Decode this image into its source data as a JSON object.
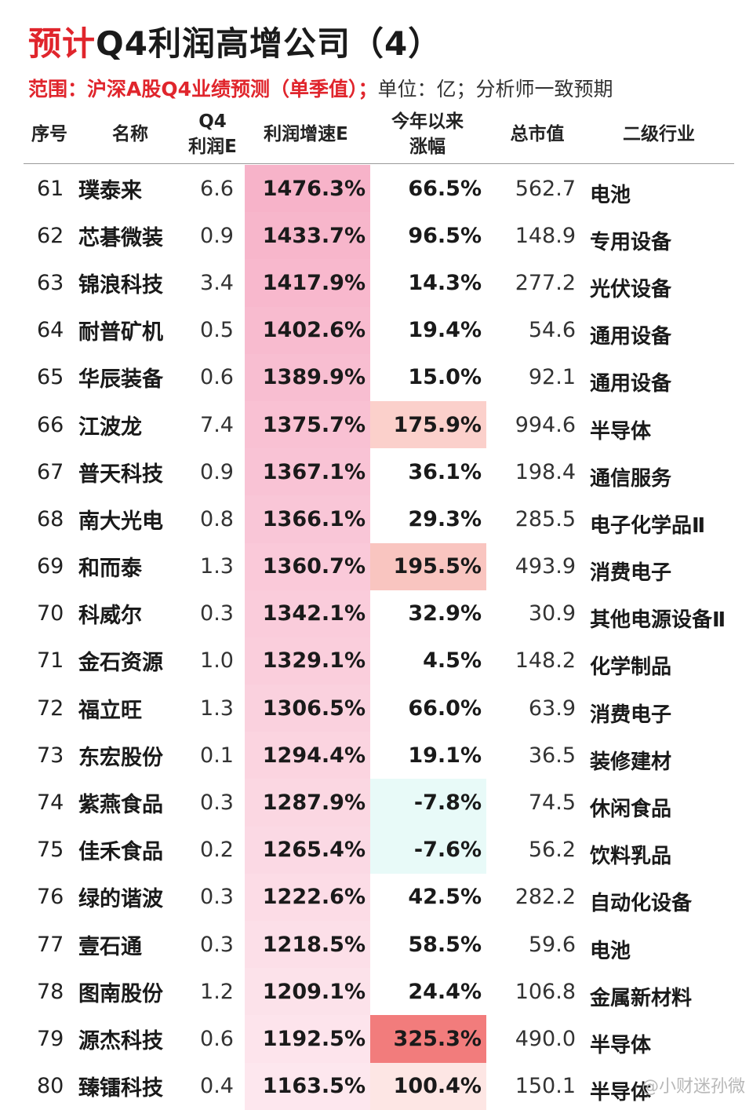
{
  "title": {
    "red": "预计",
    "black": "Q4利润高增公司（4）"
  },
  "subtitle": {
    "red": "范围：沪深A股Q4业绩预测（单季值）；",
    "gray": "单位：亿；分析师一致预期"
  },
  "headers": {
    "idx": "序号",
    "name": "名称",
    "q4_line1": "Q4",
    "q4_line2": "利润E",
    "growth": "利润增速E",
    "ytd_line1": "今年以来",
    "ytd_line2": "涨幅",
    "cap": "总市值",
    "industry": "二级行业"
  },
  "colors": {
    "growth_top": "#f7b3c9",
    "growth_bottom": "#fde7ee",
    "ytd_high": "#f27c7c",
    "ytd_mid": "#f9c5c0",
    "ytd_low": "#fde6e4",
    "ytd_negative": "#e8faf8",
    "title_red": "#e0252c"
  },
  "rows": [
    {
      "idx": "61",
      "name": "璞泰来",
      "q4": "6.6",
      "growth": "1476.3%",
      "ytd": "66.5%",
      "cap": "562.7",
      "industry": "电池"
    },
    {
      "idx": "62",
      "name": "芯碁微装",
      "q4": "0.9",
      "growth": "1433.7%",
      "ytd": "96.5%",
      "cap": "148.9",
      "industry": "专用设备"
    },
    {
      "idx": "63",
      "name": "锦浪科技",
      "q4": "3.4",
      "growth": "1417.9%",
      "ytd": "14.3%",
      "cap": "277.2",
      "industry": "光伏设备"
    },
    {
      "idx": "64",
      "name": "耐普矿机",
      "q4": "0.5",
      "growth": "1402.6%",
      "ytd": "19.4%",
      "cap": "54.6",
      "industry": "通用设备"
    },
    {
      "idx": "65",
      "name": "华辰装备",
      "q4": "0.6",
      "growth": "1389.9%",
      "ytd": "15.0%",
      "cap": "92.1",
      "industry": "通用设备"
    },
    {
      "idx": "66",
      "name": "江波龙",
      "q4": "7.4",
      "growth": "1375.7%",
      "ytd": "175.9%",
      "cap": "994.6",
      "industry": "半导体"
    },
    {
      "idx": "67",
      "name": "普天科技",
      "q4": "0.9",
      "growth": "1367.1%",
      "ytd": "36.1%",
      "cap": "198.4",
      "industry": "通信服务"
    },
    {
      "idx": "68",
      "name": "南大光电",
      "q4": "0.8",
      "growth": "1366.1%",
      "ytd": "29.3%",
      "cap": "285.5",
      "industry": "电子化学品Ⅱ"
    },
    {
      "idx": "69",
      "name": "和而泰",
      "q4": "1.3",
      "growth": "1360.7%",
      "ytd": "195.5%",
      "cap": "493.9",
      "industry": "消费电子"
    },
    {
      "idx": "70",
      "name": "科威尔",
      "q4": "0.3",
      "growth": "1342.1%",
      "ytd": "32.9%",
      "cap": "30.9",
      "industry": "其他电源设备Ⅱ"
    },
    {
      "idx": "71",
      "name": "金石资源",
      "q4": "1.0",
      "growth": "1329.1%",
      "ytd": "4.5%",
      "cap": "148.2",
      "industry": "化学制品"
    },
    {
      "idx": "72",
      "name": "福立旺",
      "q4": "1.3",
      "growth": "1306.5%",
      "ytd": "66.0%",
      "cap": "63.9",
      "industry": "消费电子"
    },
    {
      "idx": "73",
      "name": "东宏股份",
      "q4": "0.1",
      "growth": "1294.4%",
      "ytd": "19.1%",
      "cap": "36.5",
      "industry": "装修建材"
    },
    {
      "idx": "74",
      "name": "紫燕食品",
      "q4": "0.3",
      "growth": "1287.9%",
      "ytd": "-7.8%",
      "cap": "74.5",
      "industry": "休闲食品"
    },
    {
      "idx": "75",
      "name": "佳禾食品",
      "q4": "0.2",
      "growth": "1265.4%",
      "ytd": "-7.6%",
      "cap": "56.2",
      "industry": "饮料乳品"
    },
    {
      "idx": "76",
      "name": "绿的谐波",
      "q4": "0.3",
      "growth": "1222.6%",
      "ytd": "42.5%",
      "cap": "282.2",
      "industry": "自动化设备"
    },
    {
      "idx": "77",
      "name": "壹石通",
      "q4": "0.3",
      "growth": "1218.5%",
      "ytd": "58.5%",
      "cap": "59.6",
      "industry": "电池"
    },
    {
      "idx": "78",
      "name": "图南股份",
      "q4": "1.2",
      "growth": "1209.1%",
      "ytd": "24.4%",
      "cap": "106.8",
      "industry": "金属新材料"
    },
    {
      "idx": "79",
      "name": "源杰科技",
      "q4": "0.6",
      "growth": "1192.5%",
      "ytd": "325.3%",
      "cap": "490.0",
      "industry": "半导体"
    },
    {
      "idx": "80",
      "name": "臻镭科技",
      "q4": "0.4",
      "growth": "1163.5%",
      "ytd": "100.4%",
      "cap": "150.1",
      "industry": "半导体"
    }
  ],
  "watermark": "@小财迷孙微"
}
